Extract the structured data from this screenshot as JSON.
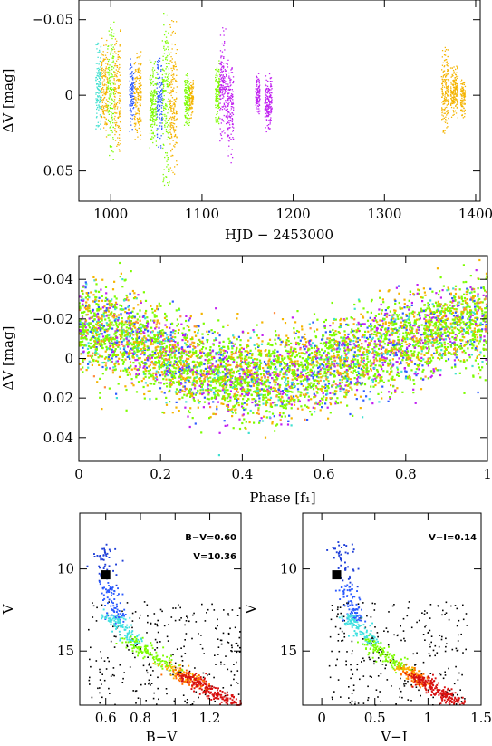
{
  "chart_data": [
    {
      "type": "scatter",
      "title": "",
      "xlabel": "HJD − 2453000",
      "ylabel": "ΔV [mag]",
      "xlim": [
        965,
        1405
      ],
      "ylim": [
        0.07,
        -0.063
      ],
      "y_inverted": true,
      "grid": false,
      "xticks": [
        1000,
        1100,
        1200,
        1300,
        1400
      ],
      "xtick_labels": [
        "1000",
        "1100",
        "1200",
        "1300",
        "1400"
      ],
      "yticks": [
        -0.05,
        0,
        0.05
      ],
      "ytick_labels": [
        "−0.05",
        "0",
        "0.05"
      ],
      "segments": [
        {
          "color": "#40e0d0",
          "x_range": [
            983,
            989
          ],
          "y_range": [
            -0.035,
            0.025
          ]
        },
        {
          "color": "#f4b400",
          "x_range": [
            989,
            996
          ],
          "y_range": [
            -0.04,
            0.03
          ]
        },
        {
          "color": "#7cfc00",
          "x_range": [
            996,
            1003
          ],
          "y_range": [
            -0.05,
            0.045
          ]
        },
        {
          "color": "#f4b400",
          "x_range": [
            1003,
            1010
          ],
          "y_range": [
            -0.045,
            0.04
          ]
        },
        {
          "color": "#2e5bff",
          "x_range": [
            1020,
            1025
          ],
          "y_range": [
            -0.025,
            0.025
          ]
        },
        {
          "color": "#f4b400",
          "x_range": [
            1025,
            1033
          ],
          "y_range": [
            -0.03,
            0.03
          ]
        },
        {
          "color": "#7cfc00",
          "x_range": [
            1042,
            1050
          ],
          "y_range": [
            -0.025,
            0.035
          ]
        },
        {
          "color": "#2e5bff",
          "x_range": [
            1050,
            1056
          ],
          "y_range": [
            -0.03,
            0.035
          ]
        },
        {
          "color": "#7cfc00",
          "x_range": [
            1056,
            1064
          ],
          "y_range": [
            -0.06,
            0.06
          ]
        },
        {
          "color": "#f4b400",
          "x_range": [
            1064,
            1072
          ],
          "y_range": [
            -0.05,
            0.055
          ]
        },
        {
          "color": "#7cfc00",
          "x_range": [
            1080,
            1086
          ],
          "y_range": [
            -0.015,
            0.02
          ]
        },
        {
          "color": "#f4b400",
          "x_range": [
            1086,
            1090
          ],
          "y_range": [
            -0.012,
            0.015
          ]
        },
        {
          "color": "#7cfc00",
          "x_range": [
            1114,
            1119
          ],
          "y_range": [
            -0.025,
            0.02
          ]
        },
        {
          "color": "#c020f0",
          "x_range": [
            1119,
            1126
          ],
          "y_range": [
            -0.045,
            0.03
          ]
        },
        {
          "color": "#c020f0",
          "x_range": [
            1127,
            1134
          ],
          "y_range": [
            -0.025,
            0.045
          ]
        },
        {
          "color": "#c020f0",
          "x_range": [
            1158,
            1163
          ],
          "y_range": [
            -0.015,
            0.012
          ]
        },
        {
          "color": "#c020f0",
          "x_range": [
            1168,
            1176
          ],
          "y_range": [
            -0.015,
            0.025
          ]
        },
        {
          "color": "#f4b400",
          "x_range": [
            1362,
            1370
          ],
          "y_range": [
            -0.033,
            0.025
          ]
        },
        {
          "color": "#f4b400",
          "x_range": [
            1372,
            1380
          ],
          "y_range": [
            -0.02,
            0.015
          ]
        },
        {
          "color": "#f4b400",
          "x_range": [
            1383,
            1388
          ],
          "y_range": [
            -0.012,
            0.015
          ]
        }
      ]
    },
    {
      "type": "scatter",
      "title": "",
      "xlabel": "Phase [f₁]",
      "ylabel": "ΔV [mag]",
      "xlim": [
        0,
        1
      ],
      "ylim": [
        0.052,
        -0.052
      ],
      "y_inverted": true,
      "grid": false,
      "xticks": [
        0,
        0.2,
        0.4,
        0.6,
        0.8,
        1
      ],
      "xtick_labels": [
        "0",
        "0.2",
        "0.4",
        "0.6",
        "0.8",
        "1"
      ],
      "yticks": [
        -0.04,
        -0.02,
        0,
        0.02,
        0.04
      ],
      "ytick_labels": [
        "−0.04",
        "−0.02",
        "0",
        "0.02",
        "0.04"
      ],
      "mean_curve": {
        "phase": [
          0,
          0.1,
          0.2,
          0.3,
          0.4,
          0.5,
          0.6,
          0.7,
          0.8,
          0.9,
          1.0
        ],
        "dv": [
          -0.018,
          -0.012,
          -0.002,
          0.006,
          0.01,
          0.008,
          0.004,
          -0.002,
          -0.01,
          -0.016,
          -0.018
        ]
      },
      "series_colors": [
        "#7cfc00",
        "#f4b400",
        "#c020f0",
        "#2e5bff",
        "#40e0d0",
        "#ff8c40"
      ]
    },
    {
      "type": "scatter",
      "title": "",
      "xlabel": "B−V",
      "ylabel": "V",
      "xlim": [
        0.45,
        1.38
      ],
      "ylim": [
        18.3,
        6.6
      ],
      "y_inverted": true,
      "xticks": [
        0.6,
        0.8,
        1,
        1.2
      ],
      "xtick_labels": [
        "0.6",
        "0.8",
        "1",
        "1.2"
      ],
      "yticks": [
        10,
        15
      ],
      "ytick_labels": [
        "10",
        "15"
      ],
      "annotations": [
        "B−V=0.60",
        "V=10.36"
      ],
      "marked_star": {
        "x": 0.6,
        "y": 10.36
      }
    },
    {
      "type": "scatter",
      "title": "",
      "xlabel": "V−I",
      "ylabel": "V",
      "xlim": [
        -0.18,
        1.5
      ],
      "ylim": [
        18.3,
        6.6
      ],
      "y_inverted": true,
      "xticks": [
        0,
        0.5,
        1,
        1.5
      ],
      "xtick_labels": [
        "0",
        "0.5",
        "1",
        "1.5"
      ],
      "yticks": [
        10,
        15
      ],
      "ytick_labels": [
        "10",
        "15"
      ],
      "annotations": [
        "V−I=0.14"
      ],
      "marked_star": {
        "x": 0.14,
        "y": 10.36
      }
    }
  ]
}
